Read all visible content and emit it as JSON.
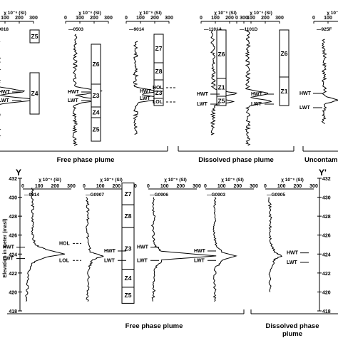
{
  "figure": {
    "top_groups": [
      "Free phase plume",
      "Dissolved  phase plume",
      "Uncontamin"
    ],
    "bottom_groups": [
      "Free phase plume",
      "Dissolved  phase",
      "plume"
    ],
    "section_left": "Y",
    "section_right": "Y'",
    "y_axis_label": "Elevation in meter (masl)",
    "x_axis_title": "χ 10⁻⁶ (SI)",
    "x_ticks": [
      "0",
      "100",
      "200",
      "300"
    ],
    "y_ticks": [
      "432",
      "430",
      "428",
      "426",
      "424",
      "422",
      "420",
      "418"
    ]
  },
  "chart_data": [
    {
      "type": "line",
      "panel": "top",
      "xlabel": "χ 10⁻⁶ (SI)",
      "xlim": [
        0,
        300
      ],
      "x_ticks": [
        0,
        100,
        200,
        300
      ],
      "series": [
        {
          "name": "9018",
          "zones": [
            "Z5",
            "Z4"
          ],
          "annotations": [
            "HWT",
            "LWT"
          ]
        },
        {
          "name": "0503",
          "zones": [
            "Z6",
            "Z3",
            "Z4",
            "Z5"
          ],
          "annotations": [
            "HWT",
            "LWT"
          ]
        },
        {
          "name": "9014",
          "zones": [
            "Z7",
            "Z8",
            "Z3"
          ],
          "annotations": [
            "HWT",
            "HOL",
            "LWT",
            "LOL"
          ]
        },
        {
          "name": "1101A",
          "zones": [
            "Z6",
            "Z1",
            "Z5"
          ],
          "annotations": [
            "HWT",
            "LWT"
          ]
        },
        {
          "name": "1101D",
          "zones": [
            "Z6",
            "Z1"
          ],
          "annotations": [
            "HWT",
            "LWT"
          ]
        },
        {
          "name": "925F",
          "zones": [],
          "annotations": [
            "HWT",
            "LWT"
          ]
        }
      ]
    },
    {
      "type": "line",
      "panel": "bottom",
      "xlabel": "χ 10⁻⁶ (SI)",
      "ylabel": "Elevation in meter (masl)",
      "xlim": [
        0,
        300
      ],
      "ylim": [
        418,
        432
      ],
      "x_ticks": [
        0,
        100,
        200,
        300
      ],
      "y_ticks": [
        418,
        420,
        422,
        424,
        426,
        428,
        430,
        432
      ],
      "series": [
        {
          "name": "9014",
          "points": [
            [
              60,
              431
            ],
            [
              55,
              430
            ],
            [
              62,
              429
            ],
            [
              58,
              428
            ],
            [
              65,
              427
            ],
            [
              60,
              426
            ],
            [
              75,
              425
            ],
            [
              140,
              424.5
            ],
            [
              260,
              424
            ],
            [
              150,
              423.7
            ],
            [
              70,
              423.2
            ],
            [
              40,
              422.5
            ],
            [
              30,
              421
            ],
            [
              25,
              420
            ],
            [
              20,
              419
            ]
          ],
          "annotations": [
            "HWT",
            "HOL",
            "LWT",
            "LOL"
          ]
        },
        {
          "name": "G0907",
          "points": [
            [
              20,
              430
            ],
            [
              22,
              429
            ],
            [
              25,
              428
            ],
            [
              20,
              427
            ],
            [
              22,
              426
            ],
            [
              25,
              425
            ],
            [
              40,
              424.2
            ],
            [
              120,
              423.8
            ],
            [
              50,
              423.4
            ],
            [
              30,
              422.5
            ],
            [
              25,
              421
            ],
            [
              20,
              420
            ],
            [
              22,
              419
            ]
          ],
          "zones": [
            "Z7",
            "Z8",
            "Z3",
            "Z4",
            "Z5"
          ],
          "annotations": [
            "HWT",
            "LWT"
          ]
        },
        {
          "name": "G0906",
          "points": [
            [
              30,
              430
            ],
            [
              25,
              429
            ],
            [
              35,
              428
            ],
            [
              28,
              427
            ],
            [
              30,
              426
            ],
            [
              40,
              425
            ],
            [
              80,
              424.3
            ],
            [
              420,
              423.8
            ],
            [
              90,
              423.4
            ],
            [
              40,
              422.5
            ],
            [
              30,
              421
            ],
            [
              35,
              420
            ],
            [
              28,
              419
            ]
          ],
          "annotations": [
            "HWT",
            "LWT"
          ]
        },
        {
          "name": "G0903",
          "points": [
            [
              60,
              430
            ],
            [
              55,
              429
            ],
            [
              60,
              428
            ],
            [
              52,
              427
            ],
            [
              58,
              426
            ],
            [
              65,
              425
            ],
            [
              100,
              424.2
            ],
            [
              190,
              423.8
            ],
            [
              110,
              423.4
            ],
            [
              60,
              422.5
            ],
            [
              55,
              421
            ],
            [
              60,
              420
            ],
            [
              55,
              419
            ]
          ],
          "annotations": [
            "HWT",
            "LWT"
          ]
        },
        {
          "name": "G0905",
          "points": [
            [
              30,
              430
            ],
            [
              28,
              429
            ],
            [
              32,
              428
            ],
            [
              30,
              427
            ],
            [
              28,
              426
            ],
            [
              35,
              425
            ],
            [
              60,
              424.2
            ],
            [
              100,
              423.8
            ],
            [
              55,
              423.4
            ],
            [
              30,
              422
            ],
            [
              28,
              421
            ],
            [
              30,
              420
            ]
          ],
          "annotations": [
            "HWT",
            "LWT"
          ]
        }
      ]
    }
  ]
}
